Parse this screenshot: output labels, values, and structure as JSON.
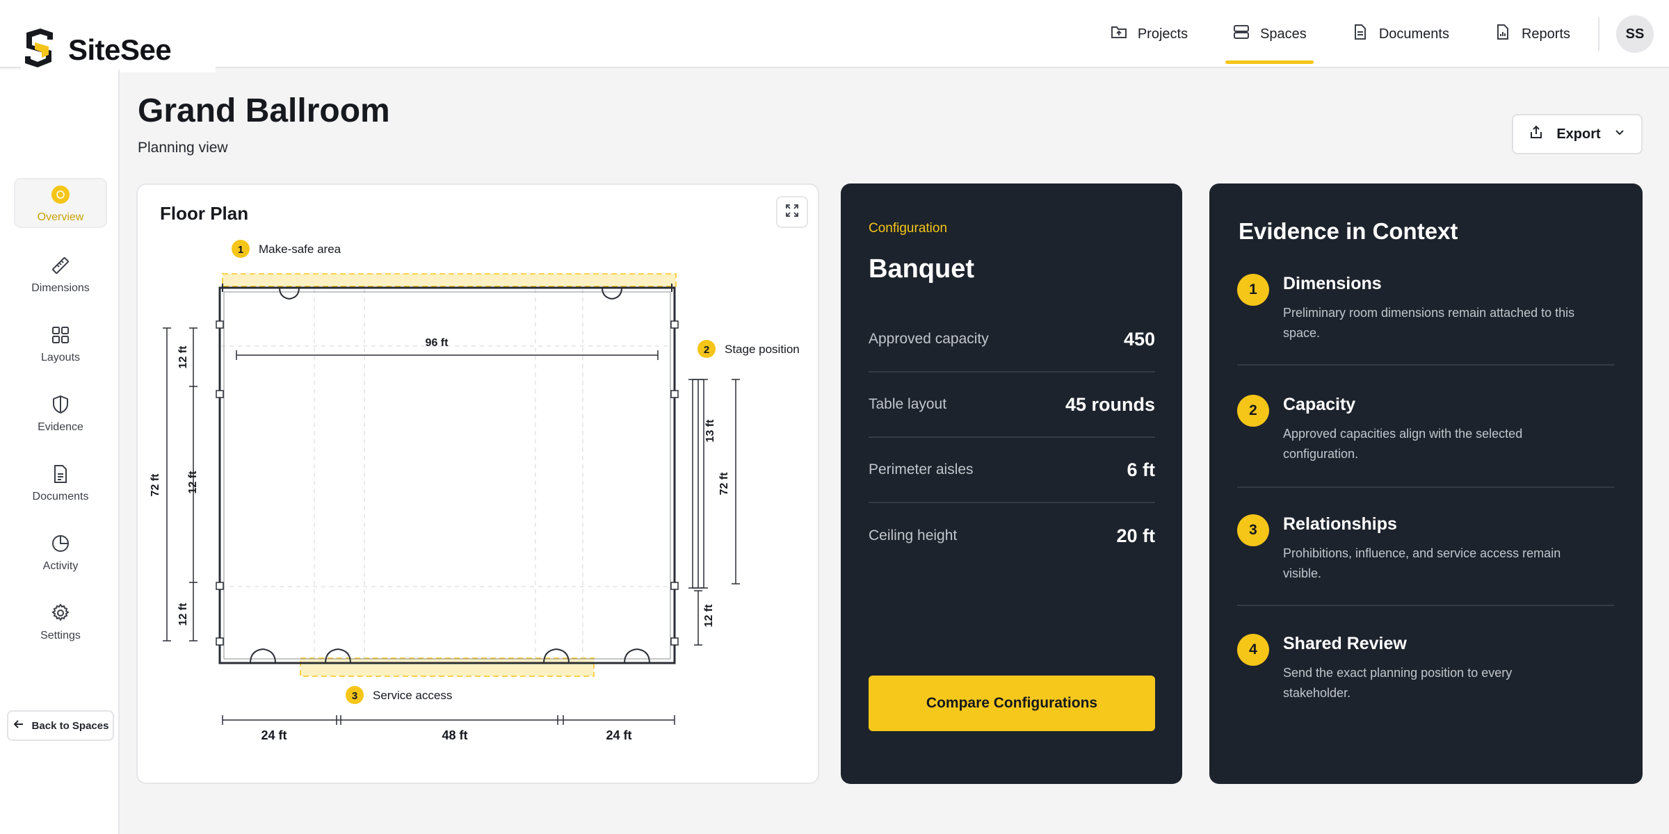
{
  "brand": {
    "name": "SiteSee",
    "accent": "#f5c518"
  },
  "nav": {
    "items": [
      {
        "label": "Projects",
        "icon": "folder-icon",
        "active": false
      },
      {
        "label": "Spaces",
        "icon": "spaces-icon",
        "active": true
      },
      {
        "label": "Documents",
        "icon": "document-icon",
        "active": false
      },
      {
        "label": "Reports",
        "icon": "report-icon",
        "active": false
      }
    ],
    "avatar_initials": "SS"
  },
  "sidebar": {
    "items": [
      {
        "label": "Overview",
        "icon": "sun-icon",
        "active": true
      },
      {
        "label": "Dimensions",
        "icon": "ruler-icon",
        "active": false
      },
      {
        "label": "Layouts",
        "icon": "grid-icon",
        "active": false
      },
      {
        "label": "Evidence",
        "icon": "shield-icon",
        "active": false
      },
      {
        "label": "Documents",
        "icon": "document-icon",
        "active": false
      },
      {
        "label": "Activity",
        "icon": "clock-icon",
        "active": false
      },
      {
        "label": "Settings",
        "icon": "gear-icon",
        "active": false
      }
    ],
    "back_label": "Back to Spaces"
  },
  "header": {
    "title": "Grand Ballroom",
    "subtitle": "Planning view",
    "export_label": "Export"
  },
  "floor_plan": {
    "title": "Floor Plan",
    "markers": [
      {
        "num": "1",
        "label": "Make-safe area"
      },
      {
        "num": "2",
        "label": "Stage position"
      },
      {
        "num": "3",
        "label": "Service access"
      }
    ],
    "dimensions": {
      "width_top": "96 ft",
      "height_left": "72 ft",
      "left_top": "12 ft",
      "left_mid": "12 ft",
      "left_bottom": "12 ft",
      "right_top": "13 ft",
      "right_mid": "72 ft",
      "right_bottom": "12 ft",
      "bottom_left": "24 ft",
      "bottom_mid": "48 ft",
      "bottom_right": "24 ft"
    }
  },
  "configuration": {
    "eyebrow": "Configuration",
    "name": "Banquet",
    "stats": [
      {
        "label": "Approved capacity",
        "value": "450"
      },
      {
        "label": "Table layout",
        "value": "45 rounds"
      },
      {
        "label": "Perimeter aisles",
        "value": "6 ft"
      },
      {
        "label": "Ceiling height",
        "value": "20 ft"
      }
    ],
    "compare_label": "Compare Configurations"
  },
  "evidence": {
    "title": "Evidence in Context",
    "items": [
      {
        "num": "1",
        "title": "Dimensions",
        "desc": "Preliminary room dimensions remain attached to this space."
      },
      {
        "num": "2",
        "title": "Capacity",
        "desc": "Approved capacities align with the selected configuration."
      },
      {
        "num": "3",
        "title": "Relationships",
        "desc": "Prohibitions, influence, and service access remain visible."
      },
      {
        "num": "4",
        "title": "Shared Review",
        "desc": "Send the exact planning position to every stakeholder."
      }
    ]
  }
}
